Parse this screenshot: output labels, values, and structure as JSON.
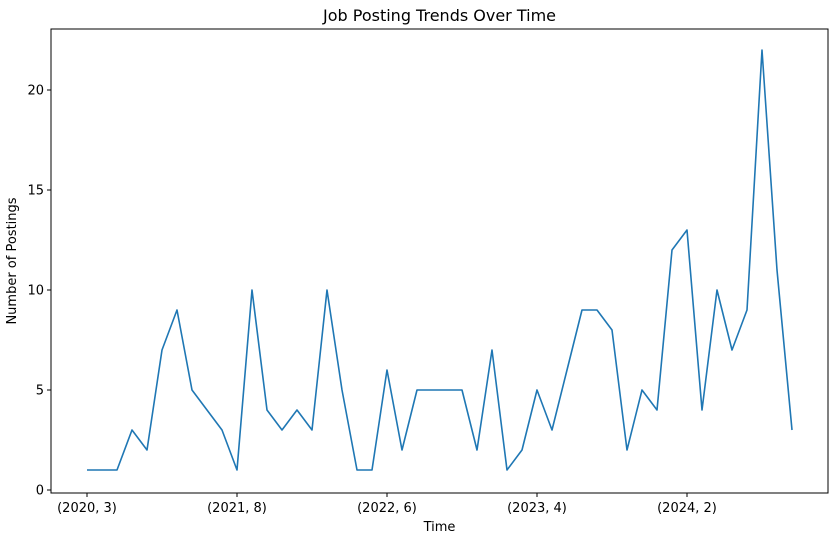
{
  "chart_data": {
    "type": "line",
    "title": "Job Posting Trends Over Time",
    "xlabel": "Time",
    "ylabel": "Number of Postings",
    "ylim": [
      0,
      22
    ],
    "yticks": [
      0,
      5,
      10,
      15,
      20
    ],
    "x_tick_labels": [
      "(2020, 3)",
      "(2021, 8)",
      "(2022, 6)",
      "(2023, 4)",
      "(2024, 2)"
    ],
    "x_tick_indices": [
      0,
      10,
      20,
      30,
      40
    ],
    "grid": false,
    "series": [
      {
        "color": "#1f77b4",
        "values": [
          1,
          1,
          1,
          3,
          2,
          7,
          9,
          5,
          4,
          3,
          1,
          10,
          4,
          3,
          4,
          3,
          10,
          5,
          1,
          1,
          6,
          2,
          5,
          5,
          5,
          5,
          2,
          7,
          1,
          2,
          5,
          3,
          6,
          9,
          9,
          8,
          2,
          5,
          4,
          12,
          13,
          4,
          10,
          7,
          9,
          22,
          11,
          3
        ]
      }
    ]
  }
}
